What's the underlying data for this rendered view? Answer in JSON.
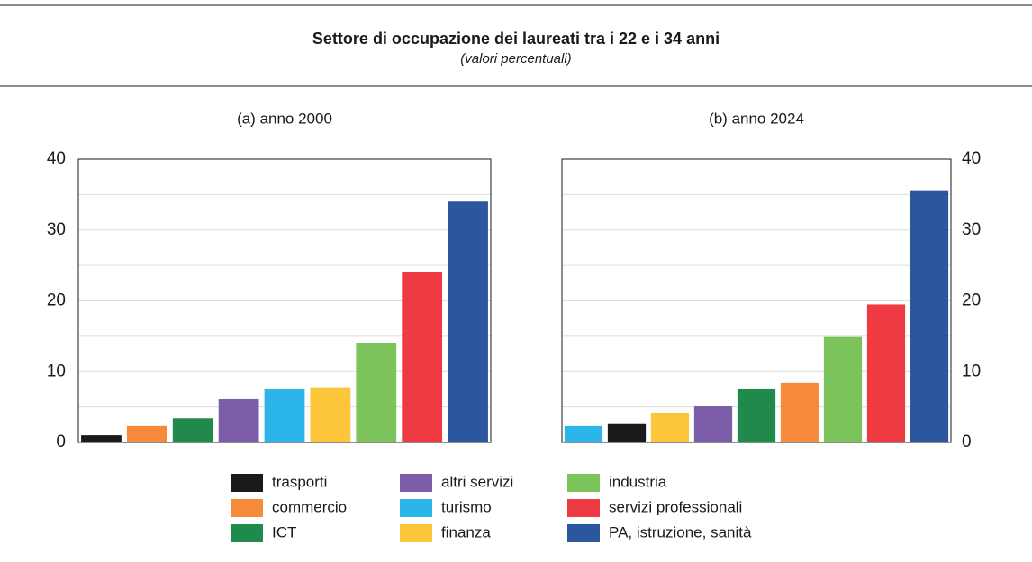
{
  "title": "Settore di occupazione dei laureati tra i 22 e i 34 anni",
  "subtitle": "(valori percentuali)",
  "chart_data": [
    {
      "type": "bar",
      "title": "(a) anno 2000",
      "values": [
        1.0,
        2.3,
        3.4,
        6.1,
        7.5,
        7.8,
        14.0,
        24.0,
        34.0
      ],
      "colors": [
        "#1a1a1a",
        "#f58a3a",
        "#1f8a4c",
        "#7b5ea7",
        "#2bb5e8",
        "#fcc53a",
        "#7cc35b",
        "#ee3a43",
        "#2c579e"
      ],
      "ylim": [
        0,
        40
      ],
      "yticks": [
        0,
        10,
        20,
        30,
        40
      ],
      "minor_yticks": [
        5,
        15,
        25,
        35
      ],
      "grid": true,
      "yaxis_side": "left"
    },
    {
      "type": "bar",
      "title": "(b) anno 2024",
      "values": [
        2.3,
        2.7,
        4.2,
        5.1,
        7.5,
        8.4,
        14.9,
        19.5,
        35.6
      ],
      "colors": [
        "#2bb5e8",
        "#1a1a1a",
        "#fcc53a",
        "#7b5ea7",
        "#1f8a4c",
        "#f58a3a",
        "#7cc35b",
        "#ee3a43",
        "#2c579e"
      ],
      "ylim": [
        0,
        40
      ],
      "yticks": [
        0,
        10,
        20,
        30,
        40
      ],
      "minor_yticks": [
        5,
        15,
        25,
        35
      ],
      "grid": true,
      "yaxis_side": "right"
    }
  ],
  "legend": [
    {
      "name": "trasporti",
      "color": "#1a1a1a"
    },
    {
      "name": "commercio",
      "color": "#f58a3a"
    },
    {
      "name": "ICT",
      "color": "#1f8a4c"
    },
    {
      "name": "altri servizi",
      "color": "#7b5ea7"
    },
    {
      "name": "turismo",
      "color": "#2bb5e8"
    },
    {
      "name": "finanza",
      "color": "#fcc53a"
    },
    {
      "name": "industria",
      "color": "#7cc35b"
    },
    {
      "name": "servizi professionali",
      "color": "#ee3a43"
    },
    {
      "name": "PA, istruzione, sanità",
      "color": "#2c579e"
    }
  ]
}
